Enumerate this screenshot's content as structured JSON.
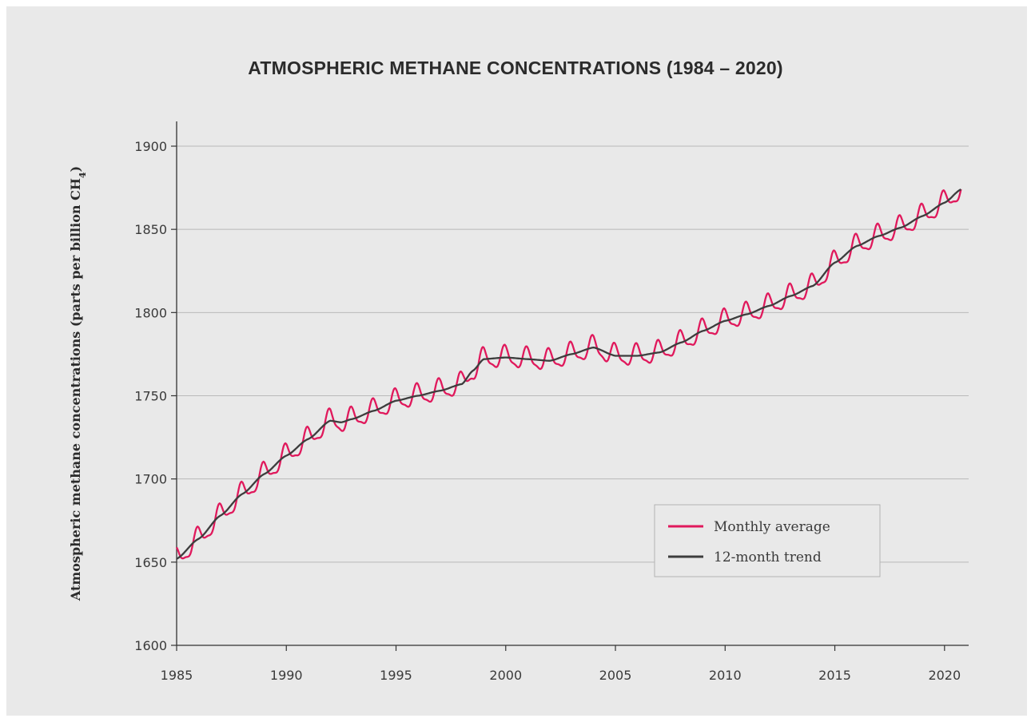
{
  "chart_data": {
    "type": "line",
    "title": "ATMOSPHERIC METHANE CONCENTRATIONS (1984 – 2020)",
    "ylabel": "Atmospheric methane concentrations (parts per billion CH",
    "ylabel_subscript": "4",
    "ylabel_suffix": ")",
    "xlabel": "",
    "xlim": [
      1985,
      2021.1
    ],
    "ylim": [
      1600,
      1915
    ],
    "xticks": [
      1985,
      1990,
      1995,
      2000,
      2005,
      2010,
      2015,
      2020
    ],
    "yticks": [
      1600,
      1650,
      1700,
      1750,
      1800,
      1850,
      1900
    ],
    "grid": "horizontal",
    "legend_position": "bottom-right",
    "trend_anchors": {
      "x": [
        1985.0,
        1986.0,
        1987.0,
        1988.0,
        1989.0,
        1990.0,
        1991.0,
        1992.0,
        1992.5,
        1993.0,
        1994.0,
        1995.0,
        1996.0,
        1997.0,
        1998.0,
        1998.5,
        1999.0,
        2000.0,
        2001.0,
        2002.0,
        2003.0,
        2004.0,
        2005.0,
        2006.0,
        2007.0,
        2008.0,
        2009.0,
        2010.0,
        2011.0,
        2012.0,
        2013.0,
        2014.0,
        2015.0,
        2016.0,
        2017.0,
        2018.0,
        2019.0,
        2020.0,
        2020.75
      ],
      "y": [
        1652,
        1664,
        1678,
        1691,
        1703,
        1714,
        1724,
        1735,
        1734,
        1736,
        1741,
        1747,
        1750,
        1753,
        1757,
        1765,
        1772,
        1773,
        1772,
        1771,
        1775,
        1779,
        1774,
        1774,
        1776,
        1782,
        1789,
        1795,
        1799,
        1804,
        1810,
        1816,
        1830,
        1840,
        1846,
        1851,
        1858,
        1866,
        1874
      ]
    },
    "series": [
      {
        "name": "Monthly average",
        "color": "#e0195c",
        "seasonal_amplitude_ppb": 6,
        "seasonal_peak_fraction_of_year": 0.97,
        "x_start": 1985.0,
        "x_end": 2020.75
      },
      {
        "name": "12-month trend",
        "color": "#3d3d3d"
      }
    ]
  }
}
